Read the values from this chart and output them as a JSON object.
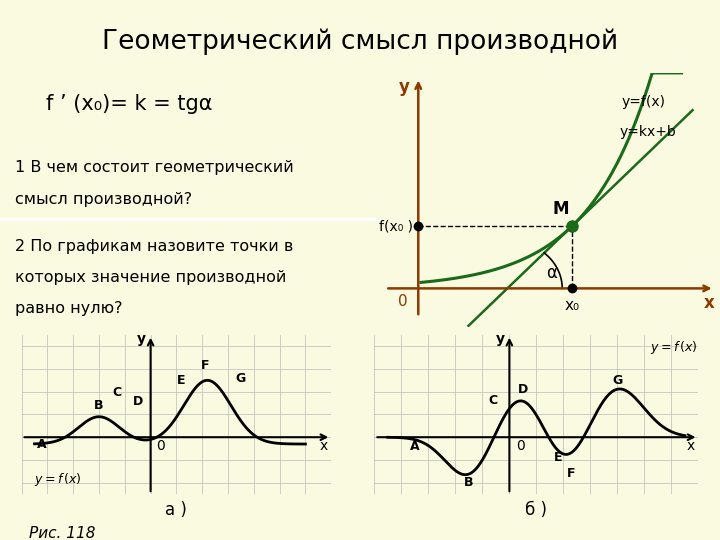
{
  "title": "Геометрический смысл производной",
  "title_bg": "#7DC11F",
  "title_color": "#000000",
  "formula": "f ’ (x₀)= k = tgα",
  "q1_line1": "1 В чем состоит геометрический",
  "q1_line2": "смысл производной?",
  "q2_line1": "2 По графикам назовите точки в",
  "q2_line2": "которых значение производной",
  "q2_line3": "равно нулю?",
  "questions_bg": "#C8EEF5",
  "graph_bg": "#C8EEF5",
  "curve_color": "#1A6A1A",
  "tangent_color": "#1A6A1A",
  "main_bg": "#FAFAE0",
  "bottom_bg": "#FAFAE0",
  "fig_caption": "Рис. 118",
  "label_a": "а )",
  "label_b": "б )"
}
